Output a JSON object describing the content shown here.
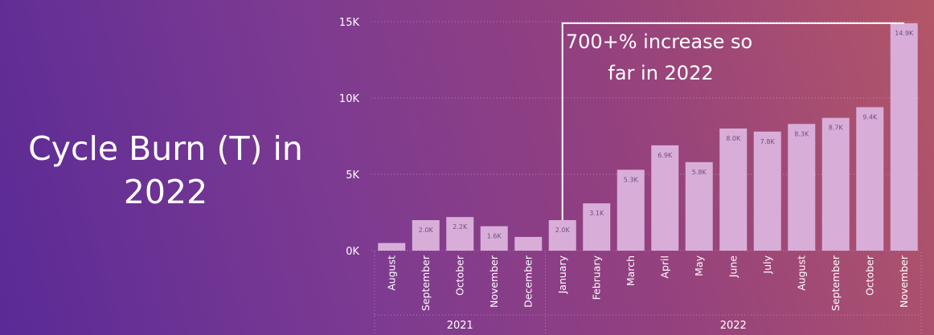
{
  "title": "Cycle Burn (T) in 2022",
  "chart_data": {
    "type": "bar",
    "categories": [
      "August",
      "September",
      "October",
      "November",
      "December",
      "January",
      "February",
      "March",
      "April",
      "May",
      "June",
      "July",
      "August",
      "September",
      "October",
      "November"
    ],
    "values": [
      0.5,
      2.0,
      2.2,
      1.6,
      0.9,
      2.0,
      3.1,
      5.3,
      6.9,
      5.8,
      8.0,
      7.8,
      8.3,
      8.7,
      9.4,
      14.9
    ],
    "data_labels": [
      "",
      "2.0K",
      "2.2K",
      "1.6K",
      "",
      "2.0K",
      "3.1K",
      "5.3K",
      "6.9K",
      "5.8K",
      "8.0K",
      "7.8K",
      "8.3K",
      "8.7K",
      "9.4K",
      "14.9K"
    ],
    "year_groups": [
      {
        "label": "2021",
        "count": 5
      },
      {
        "label": "2022",
        "count": 11
      }
    ],
    "unit": "K",
    "yticks": [
      0,
      5,
      10,
      15
    ],
    "ytick_labels": [
      "0K",
      "5K",
      "10K",
      "15K"
    ],
    "ylim": [
      0,
      15
    ],
    "xlabel": "",
    "ylabel": "",
    "grid": true,
    "bar_color": "#d8aed9",
    "annotation": {
      "lines": [
        "700+% increase so",
        "far in 2022"
      ],
      "bracket_from_index": 5,
      "bracket_to_index": 15
    }
  }
}
